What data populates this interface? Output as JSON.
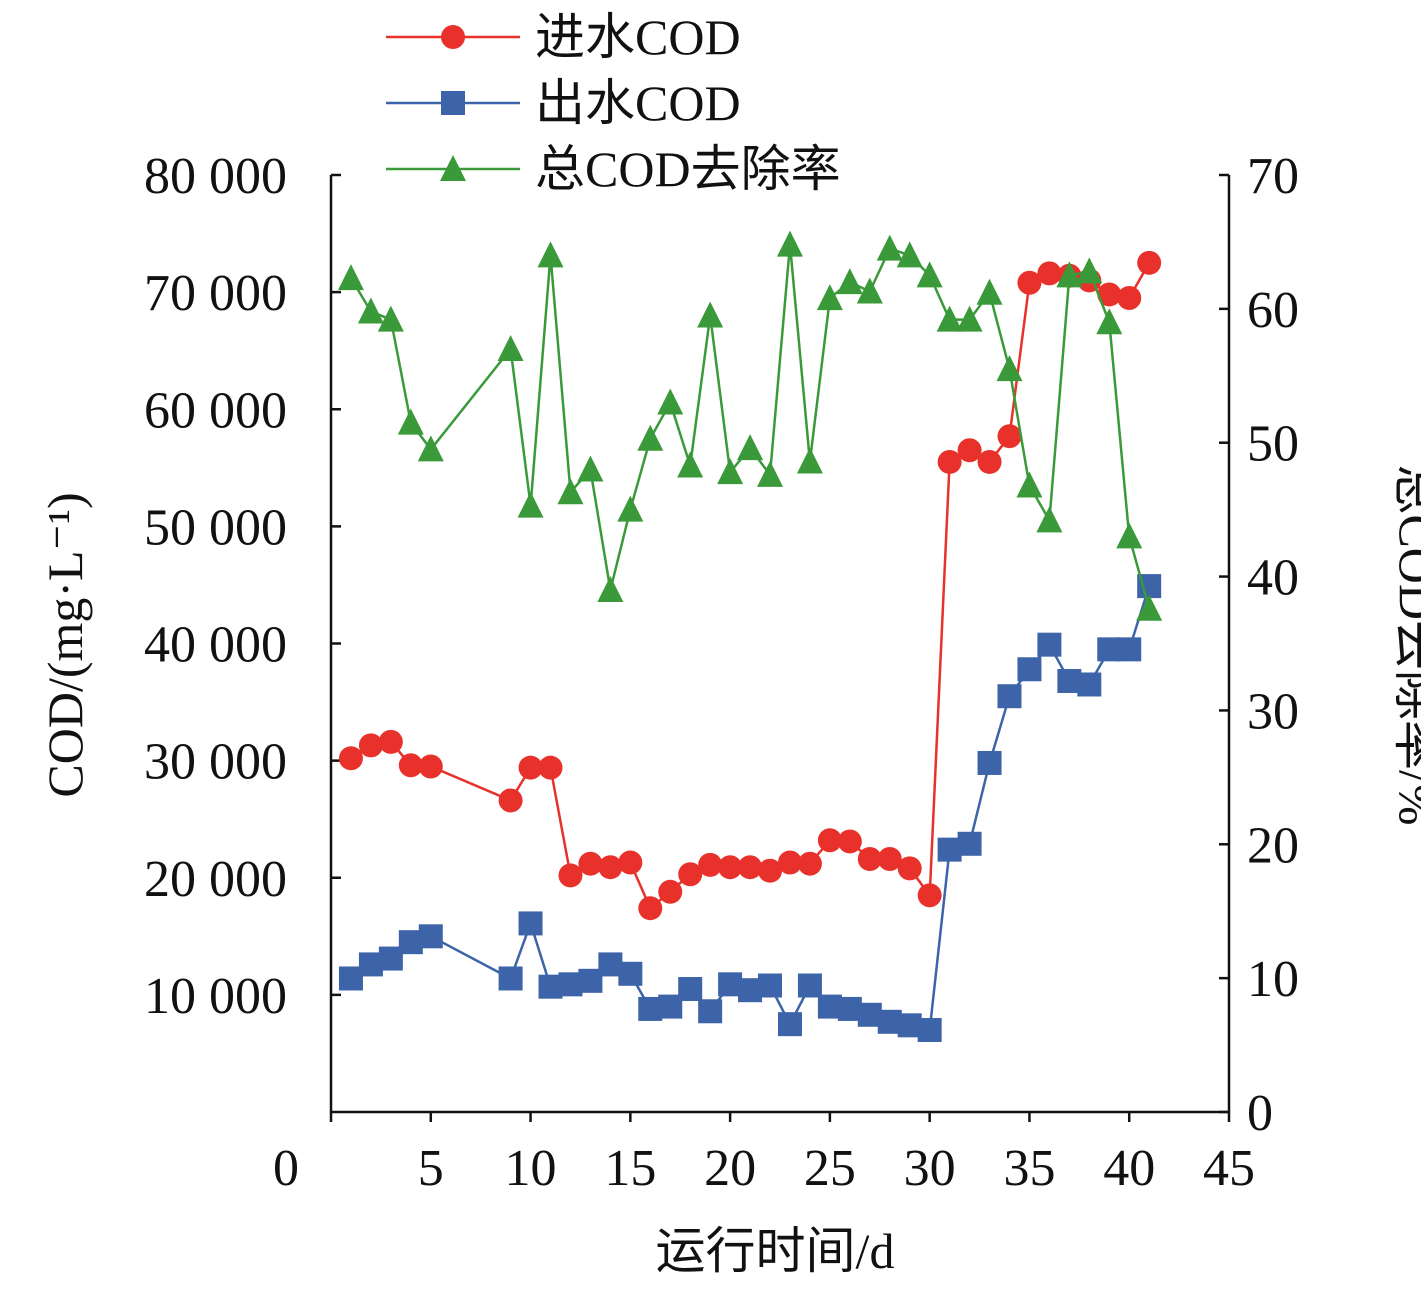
{
  "chart_data": {
    "type": "line",
    "xlabel": "运行时间/d",
    "ylabel_left": "COD/(mg·L⁻¹)",
    "ylabel_right": "总COD去除率/%",
    "xlim": [
      0,
      45
    ],
    "ylim_left": [
      0,
      80000
    ],
    "ylim_right": [
      0,
      70
    ],
    "x_ticks": [
      "0",
      "5",
      "10",
      "15",
      "20",
      "25",
      "30",
      "35",
      "40",
      "45"
    ],
    "y_left_ticks": [
      "10 000",
      "20 000",
      "30 000",
      "40 000",
      "50 000",
      "60 000",
      "70 000",
      "80 000"
    ],
    "y_right_ticks": [
      "0",
      "10",
      "20",
      "30",
      "40",
      "50",
      "60",
      "70"
    ],
    "grid": false,
    "legend_position": "top-left",
    "series": [
      {
        "name": "进水COD",
        "axis": "left",
        "color": "#e8312a",
        "marker": "circle",
        "x": [
          1,
          2,
          3,
          4,
          5,
          9,
          10,
          11,
          12,
          13,
          14,
          15,
          16,
          17,
          18,
          19,
          20,
          21,
          22,
          23,
          24,
          25,
          26,
          27,
          28,
          29,
          30,
          31,
          32,
          33,
          34,
          35,
          36,
          37,
          38,
          39,
          40,
          41
        ],
        "values": [
          30200,
          31300,
          31600,
          29600,
          29500,
          26600,
          29400,
          29400,
          20200,
          21200,
          20900,
          21300,
          17400,
          18800,
          20300,
          21100,
          20900,
          20900,
          20600,
          21300,
          21200,
          23200,
          23100,
          21600,
          21600,
          20800,
          18500,
          55500,
          56500,
          55500,
          57700,
          70800,
          71600,
          71400,
          71000,
          69800,
          69500,
          72500
        ]
      },
      {
        "name": "出水COD",
        "axis": "left",
        "color": "#3d63a8",
        "marker": "square",
        "x": [
          1,
          2,
          3,
          4,
          5,
          9,
          10,
          11,
          12,
          13,
          14,
          15,
          16,
          17,
          18,
          19,
          20,
          21,
          22,
          23,
          24,
          25,
          26,
          27,
          28,
          29,
          30,
          31,
          32,
          33,
          34,
          35,
          36,
          37,
          38,
          39,
          40,
          41
        ],
        "values": [
          11400,
          12600,
          13100,
          14500,
          15000,
          11400,
          16100,
          10700,
          10900,
          11200,
          12600,
          11800,
          8800,
          9000,
          10500,
          8600,
          10900,
          10400,
          10800,
          7500,
          10800,
          9000,
          8800,
          8300,
          7700,
          7400,
          7000,
          22400,
          22900,
          29800,
          35500,
          37800,
          39900,
          36800,
          36500,
          39500,
          39500,
          44900
        ]
      },
      {
        "name": "总COD去除率",
        "axis": "right",
        "color": "#3a9a3a",
        "marker": "triangle",
        "x": [
          1,
          2,
          3,
          4,
          5,
          9,
          10,
          11,
          12,
          13,
          14,
          15,
          16,
          17,
          18,
          19,
          20,
          21,
          22,
          23,
          24,
          25,
          26,
          27,
          28,
          29,
          30,
          31,
          32,
          33,
          34,
          35,
          36,
          37,
          38,
          39,
          40,
          41
        ],
        "values": [
          62.3,
          59.8,
          59.2,
          51.5,
          49.5,
          57.0,
          45.3,
          64.0,
          46.3,
          48.0,
          39.0,
          45.0,
          50.3,
          53.0,
          48.3,
          59.5,
          47.8,
          49.6,
          47.6,
          64.8,
          48.6,
          60.8,
          62.0,
          61.3,
          64.5,
          64.0,
          62.5,
          59.2,
          59.2,
          61.2,
          55.5,
          46.8,
          44.2,
          62.5,
          62.8,
          59.0,
          43.0,
          37.6
        ]
      }
    ]
  }
}
